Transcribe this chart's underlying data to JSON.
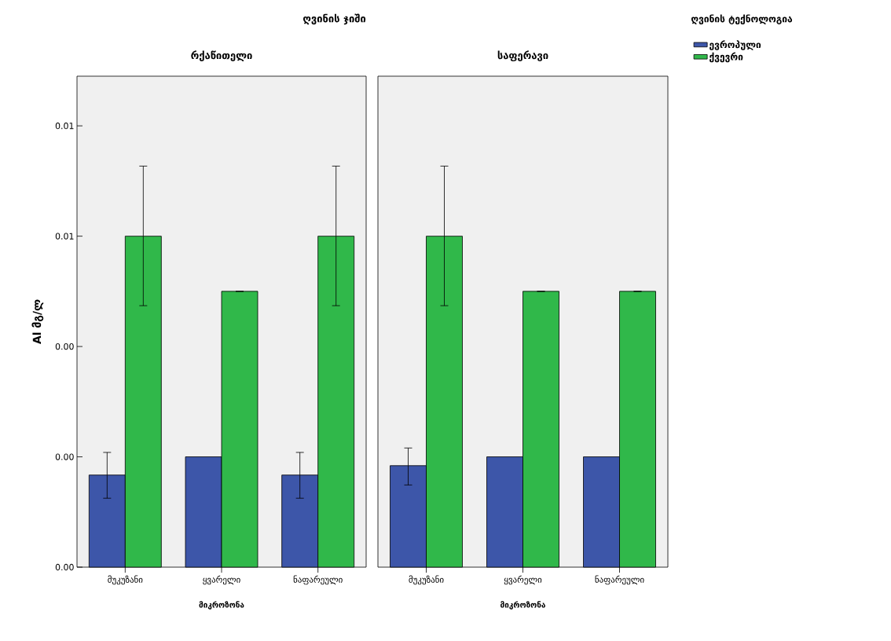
{
  "chart_data": [
    {
      "type": "bar",
      "title": "ღვინის ჯიში",
      "subtitle": "რქაწითელი",
      "xlabel": "მიკროზონა",
      "ylabel": "Al მგ/ლ",
      "categories": [
        "მუკუზანი",
        "ყვარელი",
        "ნაფარეული"
      ],
      "series": [
        {
          "color": "#3d56a9",
          "values": [
            0.00167,
            0.002,
            0.00167
          ],
          "errors": [
            [
              0.00125,
              0.00208
            ],
            null,
            [
              0.00125,
              0.00208
            ]
          ]
        },
        {
          "color": "#30b84a",
          "values": [
            0.006,
            0.005,
            0.006
          ],
          "errors": [
            [
              0.00474,
              0.00727
            ],
            [
              0.005,
              0.005
            ],
            [
              0.00474,
              0.00727
            ]
          ]
        }
      ],
      "ylim": [
        0,
        0.0089
      ],
      "yticks": [
        {
          "value": 0,
          "label": "0.00"
        },
        {
          "value": 0.002,
          "label": "0.00"
        },
        {
          "value": 0.004,
          "label": "0.00"
        },
        {
          "value": 0.006,
          "label": "0.01"
        },
        {
          "value": 0.008,
          "label": "0.01"
        }
      ],
      "grid": false,
      "legend": false
    },
    {
      "type": "bar",
      "subtitle": "საფერავი",
      "xlabel": "მიკროზონა",
      "legend_title": "ღვინის ტექნოლოგია",
      "categories": [
        "მუკუზანი",
        "ყვარელი",
        "ნაფარეული"
      ],
      "series": [
        {
          "name": "ევროპული",
          "color": "#3d56a9",
          "values": [
            0.00184,
            0.002,
            0.002
          ],
          "errors": [
            [
              0.00149,
              0.00216
            ],
            null,
            null
          ]
        },
        {
          "name": "ქვევრი",
          "color": "#30b84a",
          "values": [
            0.006,
            0.005,
            0.005
          ],
          "errors": [
            [
              0.00474,
              0.00727
            ],
            [
              0.005,
              0.005
            ],
            [
              0.005,
              0.005
            ]
          ]
        }
      ],
      "ylim": [
        0,
        0.0089
      ],
      "tick_labels": "x",
      "grid": false,
      "legend": "top right"
    }
  ]
}
